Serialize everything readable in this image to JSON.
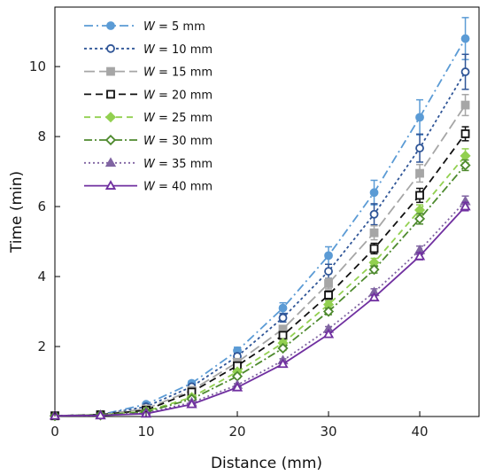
{
  "chart_data": {
    "type": "line",
    "xlabel": "Distance (mm)",
    "ylabel": "Time (min)",
    "xlim": [
      0,
      46.5
    ],
    "ylim": [
      0,
      11.7
    ],
    "x": [
      0,
      5,
      10,
      15,
      20,
      25,
      30,
      35,
      40,
      45
    ],
    "x_ticks": [
      0,
      10,
      20,
      30,
      40
    ],
    "y_ticks": [
      2,
      4,
      6,
      8,
      10
    ],
    "grid": false,
    "legend_position": "top-left",
    "series": [
      {
        "name": "W = 5 mm",
        "legend_prefix": "W",
        "legend_rest": " = 5 mm",
        "color": "#5b9bd5",
        "dash": "10,4,2,4",
        "marker": "circle",
        "fill": true,
        "values": [
          0.02,
          0.05,
          0.35,
          0.95,
          1.88,
          3.1,
          4.6,
          6.4,
          8.55,
          10.8
        ],
        "errors": [
          0,
          0,
          0.05,
          0.07,
          0.1,
          0.15,
          0.25,
          0.35,
          0.5,
          0.6
        ]
      },
      {
        "name": "W = 10 mm",
        "legend_prefix": "W",
        "legend_rest": " = 10 mm",
        "color": "#2f5597",
        "dash": "3,3",
        "marker": "circle",
        "fill": false,
        "values": [
          0.02,
          0.05,
          0.28,
          0.85,
          1.72,
          2.82,
          4.15,
          5.78,
          7.67,
          9.85
        ],
        "errors": [
          0,
          0,
          0.05,
          0.06,
          0.08,
          0.12,
          0.2,
          0.3,
          0.4,
          0.5
        ]
      },
      {
        "name": "W = 15 mm",
        "legend_prefix": "W",
        "legend_rest": " = 15 mm",
        "color": "#a6a6a6",
        "dash": "12,5",
        "marker": "square",
        "fill": true,
        "values": [
          0.02,
          0.05,
          0.22,
          0.75,
          1.55,
          2.5,
          3.8,
          5.25,
          6.95,
          8.9
        ],
        "errors": [
          0,
          0,
          0.04,
          0.05,
          0.07,
          0.1,
          0.15,
          0.2,
          0.25,
          0.3
        ]
      },
      {
        "name": "W = 20 mm",
        "legend_prefix": "W",
        "legend_rest": " = 20 mm",
        "color": "#111111",
        "dash": "8,5",
        "marker": "square",
        "fill": false,
        "values": [
          0.02,
          0.05,
          0.18,
          0.7,
          1.45,
          2.32,
          3.47,
          4.8,
          6.32,
          8.08
        ],
        "errors": [
          0,
          0,
          0.03,
          0.04,
          0.05,
          0.08,
          0.12,
          0.15,
          0.2,
          0.2
        ]
      },
      {
        "name": "W = 25 mm",
        "legend_prefix": "W",
        "legend_rest": " = 25 mm",
        "color": "#92d050",
        "dash": "7,5",
        "marker": "diamond",
        "fill": true,
        "values": [
          0.02,
          0.04,
          0.15,
          0.55,
          1.28,
          2.1,
          3.2,
          4.4,
          5.9,
          7.45
        ],
        "errors": [
          0,
          0,
          0.03,
          0.04,
          0.05,
          0.07,
          0.1,
          0.12,
          0.15,
          0.2
        ]
      },
      {
        "name": "W = 30 mm",
        "legend_prefix": "W",
        "legend_rest": " = 30 mm",
        "color": "#4e8a2e",
        "dash": "9,3,2,3",
        "marker": "diamond",
        "fill": false,
        "values": [
          0.02,
          0.04,
          0.13,
          0.5,
          1.15,
          1.95,
          3.0,
          4.2,
          5.65,
          7.18
        ],
        "errors": [
          0,
          0,
          0.03,
          0.03,
          0.05,
          0.06,
          0.09,
          0.1,
          0.15,
          0.15
        ]
      },
      {
        "name": "W = 35 mm",
        "legend_prefix": "W",
        "legend_rest": " = 35 mm",
        "color": "#8064a2",
        "dash": "2,3",
        "marker": "triangle",
        "fill": true,
        "values": [
          0.02,
          0.03,
          0.1,
          0.4,
          0.9,
          1.6,
          2.5,
          3.55,
          4.75,
          6.15
        ],
        "errors": [
          0,
          0,
          0.02,
          0.03,
          0.04,
          0.05,
          0.07,
          0.1,
          0.12,
          0.15
        ]
      },
      {
        "name": "W = 40 mm",
        "legend_prefix": "W",
        "legend_rest": " = 40 mm",
        "color": "#7030a0",
        "dash": "",
        "marker": "triangle",
        "fill": false,
        "values": [
          0.02,
          0.03,
          0.08,
          0.35,
          0.83,
          1.5,
          2.35,
          3.4,
          4.58,
          6.0
        ],
        "errors": [
          0,
          0,
          0.02,
          0.02,
          0.03,
          0.04,
          0.05,
          0.07,
          0.1,
          0.12
        ]
      }
    ]
  }
}
